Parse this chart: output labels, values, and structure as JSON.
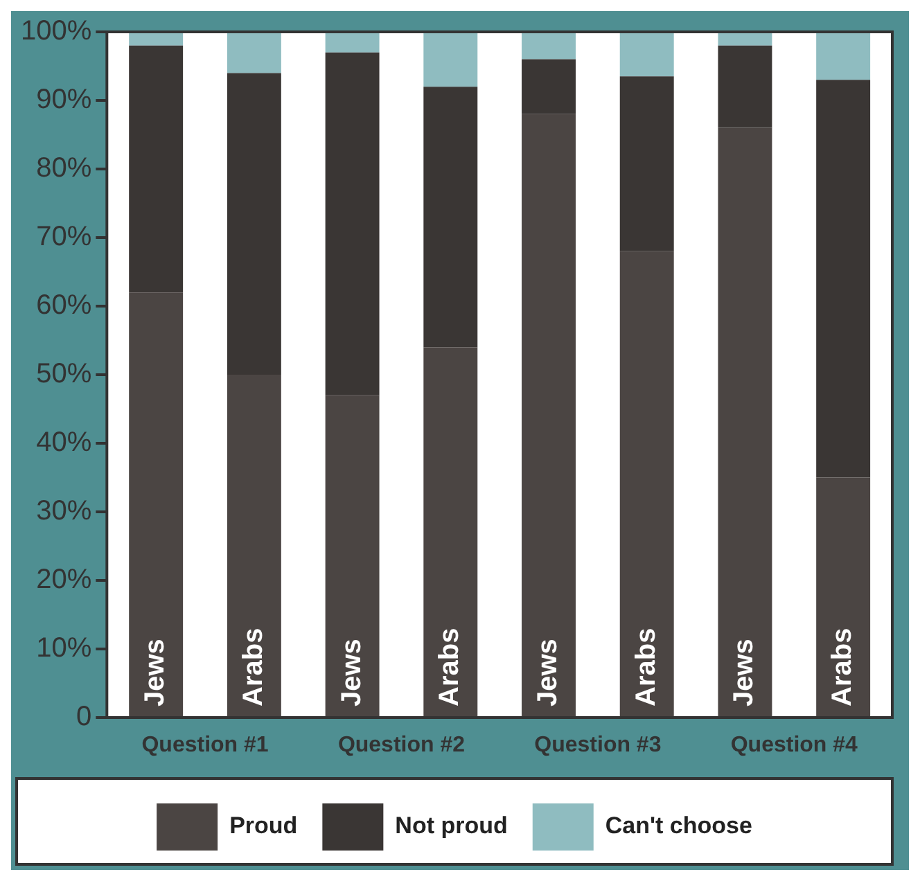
{
  "chart_data": {
    "type": "bar",
    "stacked": true,
    "categories": [
      "Jews",
      "Arabs",
      "Jews",
      "Arabs",
      "Jews",
      "Arabs",
      "Jews",
      "Arabs"
    ],
    "series": [
      {
        "name": "Proud",
        "color": "#4b4543",
        "values": [
          62,
          50,
          47,
          54,
          88,
          68,
          86,
          35
        ]
      },
      {
        "name": "Not proud",
        "color": "#3a3634",
        "values": [
          36,
          44,
          50,
          38,
          8,
          25.5,
          12,
          58
        ]
      },
      {
        "name": "Can't choose",
        "color": "#8fbcc0",
        "values": [
          2,
          6,
          3,
          8,
          4,
          6.5,
          2,
          7
        ]
      }
    ],
    "ylim": [
      0,
      100
    ],
    "yticks": [
      0,
      {
        "value": 10,
        "label": "10%"
      },
      {
        "value": 20,
        "label": "20%"
      },
      {
        "value": 30,
        "label": "30%"
      },
      {
        "value": 40,
        "label": "40%"
      },
      {
        "value": 50,
        "label": "50%"
      },
      {
        "value": 60,
        "label": "60%"
      },
      {
        "value": 70,
        "label": "70%"
      },
      {
        "value": 80,
        "label": "80%"
      },
      {
        "value": 90,
        "label": "90%"
      },
      {
        "value": 100,
        "label": "100%"
      }
    ],
    "grid": false,
    "legend": "bottom",
    "annotations": [
      "Question #1",
      "Question #2",
      "Question #3",
      "Question #4"
    ]
  }
}
